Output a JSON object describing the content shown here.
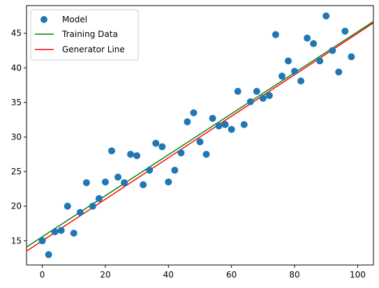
{
  "chart_data": {
    "type": "scatter",
    "xlim": [
      -5,
      105
    ],
    "ylim": [
      11.5,
      49
    ],
    "x_ticks": [
      0,
      20,
      40,
      60,
      80,
      100
    ],
    "y_ticks": [
      15,
      20,
      25,
      30,
      35,
      40,
      45
    ],
    "grid": false,
    "legend_position": "top-left",
    "series": [
      {
        "name": "Model",
        "kind": "scatter",
        "color": "#1f77b4",
        "points": [
          [
            0,
            15.0
          ],
          [
            2,
            13.0
          ],
          [
            4,
            16.3
          ],
          [
            6,
            16.5
          ],
          [
            8,
            20.0
          ],
          [
            10,
            16.1
          ],
          [
            12,
            19.1
          ],
          [
            14,
            23.4
          ],
          [
            16,
            20.0
          ],
          [
            18,
            21.1
          ],
          [
            20,
            23.5
          ],
          [
            22,
            28.0
          ],
          [
            24,
            24.2
          ],
          [
            26,
            23.4
          ],
          [
            28,
            27.5
          ],
          [
            30,
            27.3
          ],
          [
            32,
            23.1
          ],
          [
            34,
            25.2
          ],
          [
            36,
            29.1
          ],
          [
            38,
            28.6
          ],
          [
            40,
            23.5
          ],
          [
            42,
            25.2
          ],
          [
            44,
            27.7
          ],
          [
            46,
            32.2
          ],
          [
            48,
            33.5
          ],
          [
            50,
            29.3
          ],
          [
            52,
            27.5
          ],
          [
            54,
            32.7
          ],
          [
            56,
            31.6
          ],
          [
            58,
            31.8
          ],
          [
            60,
            31.1
          ],
          [
            62,
            36.6
          ],
          [
            64,
            31.8
          ],
          [
            66,
            35.1
          ],
          [
            68,
            36.6
          ],
          [
            70,
            35.6
          ],
          [
            72,
            36.0
          ],
          [
            74,
            44.8
          ],
          [
            76,
            38.8
          ],
          [
            78,
            41.0
          ],
          [
            80,
            39.5
          ],
          [
            82,
            38.1
          ],
          [
            84,
            44.3
          ],
          [
            86,
            43.5
          ],
          [
            88,
            41.0
          ],
          [
            90,
            47.5
          ],
          [
            92,
            42.5
          ],
          [
            94,
            39.4
          ],
          [
            96,
            45.3
          ],
          [
            98,
            41.6
          ]
        ]
      },
      {
        "name": "Training Data",
        "kind": "line",
        "color": "#008000",
        "x": [
          -5,
          105
        ],
        "y": [
          14.1,
          46.7
        ]
      },
      {
        "name": "Generator Line",
        "kind": "line",
        "color": "#ff0000",
        "x": [
          -5,
          105
        ],
        "y": [
          13.5,
          46.5
        ]
      }
    ]
  }
}
